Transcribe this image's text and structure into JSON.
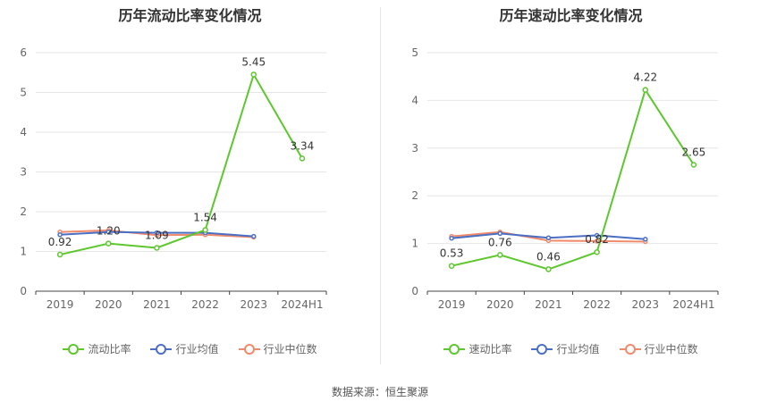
{
  "footer": "数据来源：恒生聚源",
  "chart_data": [
    {
      "type": "line",
      "title": "历年流动比率变化情况",
      "categories": [
        "2019",
        "2020",
        "2021",
        "2022",
        "2023",
        "2024H1"
      ],
      "ylim": [
        0,
        6
      ],
      "yticks": [
        0,
        1,
        2,
        3,
        4,
        5,
        6
      ],
      "grid": true,
      "legend_position": "bottom",
      "series": [
        {
          "name": "流动比率",
          "color": "#5dc72e",
          "values": [
            0.92,
            1.2,
            1.09,
            1.54,
            5.45,
            3.34
          ],
          "labels": [
            "0.92",
            "1.20",
            "1.09",
            "1.54",
            "5.45",
            "3.34"
          ]
        },
        {
          "name": "行业均值",
          "color": "#4a6fc4",
          "values": [
            1.42,
            1.49,
            1.47,
            1.47,
            1.38,
            null
          ]
        },
        {
          "name": "行业中位数",
          "color": "#f08a6a",
          "values": [
            1.49,
            1.53,
            1.41,
            1.42,
            1.36,
            null
          ]
        }
      ]
    },
    {
      "type": "line",
      "title": "历年速动比率变化情况",
      "categories": [
        "2019",
        "2020",
        "2021",
        "2022",
        "2023",
        "2024H1"
      ],
      "ylim": [
        0,
        5
      ],
      "yticks": [
        0,
        1,
        2,
        3,
        4,
        5
      ],
      "grid": true,
      "legend_position": "bottom",
      "series": [
        {
          "name": "速动比率",
          "color": "#5dc72e",
          "values": [
            0.53,
            0.76,
            0.46,
            0.82,
            4.22,
            2.65
          ],
          "labels": [
            "0.53",
            "0.76",
            "0.46",
            "0.82",
            "4.22",
            "2.65"
          ]
        },
        {
          "name": "行业均值",
          "color": "#4a6fc4",
          "values": [
            1.11,
            1.21,
            1.12,
            1.17,
            1.09,
            null
          ]
        },
        {
          "name": "行业中位数",
          "color": "#f08a6a",
          "values": [
            1.15,
            1.24,
            1.06,
            1.05,
            1.04,
            null
          ]
        }
      ]
    }
  ]
}
